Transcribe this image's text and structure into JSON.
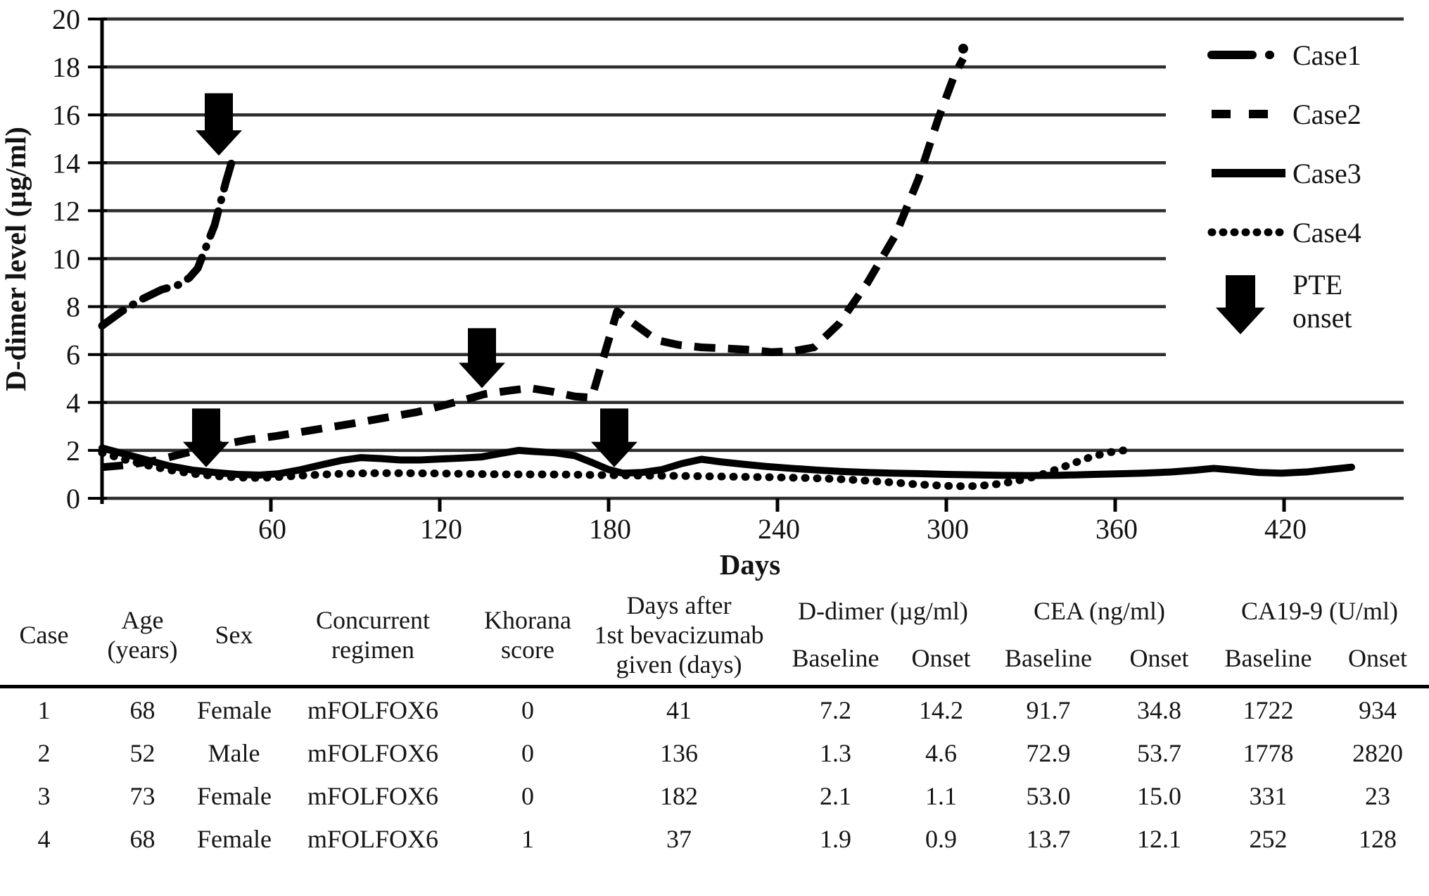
{
  "chart_data": {
    "type": "line",
    "title": "",
    "xlabel": "Days",
    "ylabel": "D-dimer level (µg/ml)",
    "xlim": [
      0,
      462
    ],
    "ylim": [
      0,
      20
    ],
    "y_ticks": [
      0,
      2,
      4,
      6,
      8,
      10,
      12,
      14,
      16,
      18,
      20
    ],
    "x_ticks": [
      60,
      120,
      180,
      240,
      300,
      360,
      420
    ],
    "grid": "horizontal",
    "legend_position": "right",
    "series": [
      {
        "name": "Case1",
        "style": "dash-dot",
        "points": [
          [
            0,
            7.2
          ],
          [
            7,
            7.8
          ],
          [
            14,
            8.3
          ],
          [
            21,
            8.7
          ],
          [
            27,
            8.9
          ],
          [
            31,
            9.2
          ],
          [
            34,
            9.6
          ],
          [
            37,
            10.5
          ],
          [
            40,
            11.4
          ],
          [
            42,
            12.3
          ],
          [
            44,
            13.2
          ],
          [
            46,
            14.0
          ]
        ]
      },
      {
        "name": "Case2",
        "style": "dashed",
        "end_marker": true,
        "points": [
          [
            0,
            1.3
          ],
          [
            10,
            1.4
          ],
          [
            20,
            1.6
          ],
          [
            30,
            1.9
          ],
          [
            41,
            2.2
          ],
          [
            52,
            2.45
          ],
          [
            62,
            2.6
          ],
          [
            75,
            2.85
          ],
          [
            88,
            3.1
          ],
          [
            100,
            3.35
          ],
          [
            112,
            3.6
          ],
          [
            122,
            3.9
          ],
          [
            130,
            4.15
          ],
          [
            136,
            4.35
          ],
          [
            145,
            4.5
          ],
          [
            152,
            4.6
          ],
          [
            160,
            4.45
          ],
          [
            168,
            4.25
          ],
          [
            174,
            4.2
          ],
          [
            183,
            7.8
          ],
          [
            190,
            7.2
          ],
          [
            197,
            6.6
          ],
          [
            205,
            6.4
          ],
          [
            213,
            6.3
          ],
          [
            222,
            6.25
          ],
          [
            230,
            6.2
          ],
          [
            238,
            6.1
          ],
          [
            246,
            6.15
          ],
          [
            253,
            6.3
          ],
          [
            262,
            7.3
          ],
          [
            272,
            9.0
          ],
          [
            282,
            11.0
          ],
          [
            290,
            13.3
          ],
          [
            297,
            15.8
          ],
          [
            303,
            17.7
          ],
          [
            306,
            18.35
          ]
        ]
      },
      {
        "name": "Case3",
        "style": "solid",
        "points": [
          [
            0,
            2.1
          ],
          [
            8,
            1.85
          ],
          [
            16,
            1.6
          ],
          [
            24,
            1.35
          ],
          [
            32,
            1.18
          ],
          [
            40,
            1.08
          ],
          [
            48,
            1.0
          ],
          [
            56,
            0.97
          ],
          [
            63,
            1.03
          ],
          [
            70,
            1.18
          ],
          [
            78,
            1.4
          ],
          [
            85,
            1.58
          ],
          [
            92,
            1.7
          ],
          [
            99,
            1.66
          ],
          [
            106,
            1.6
          ],
          [
            113,
            1.6
          ],
          [
            120,
            1.64
          ],
          [
            128,
            1.68
          ],
          [
            135,
            1.73
          ],
          [
            142,
            1.88
          ],
          [
            148,
            2.0
          ],
          [
            154,
            1.95
          ],
          [
            161,
            1.9
          ],
          [
            168,
            1.78
          ],
          [
            174,
            1.5
          ],
          [
            180,
            1.2
          ],
          [
            185,
            1.05
          ],
          [
            192,
            1.08
          ],
          [
            199,
            1.2
          ],
          [
            206,
            1.45
          ],
          [
            213,
            1.63
          ],
          [
            220,
            1.52
          ],
          [
            228,
            1.42
          ],
          [
            236,
            1.33
          ],
          [
            245,
            1.25
          ],
          [
            254,
            1.18
          ],
          [
            263,
            1.12
          ],
          [
            272,
            1.08
          ],
          [
            281,
            1.05
          ],
          [
            290,
            1.03
          ],
          [
            300,
            1.0
          ],
          [
            310,
            0.98
          ],
          [
            320,
            0.96
          ],
          [
            330,
            0.95
          ],
          [
            340,
            0.96
          ],
          [
            350,
            0.99
          ],
          [
            360,
            1.02
          ],
          [
            370,
            1.05
          ],
          [
            380,
            1.1
          ],
          [
            388,
            1.17
          ],
          [
            395,
            1.25
          ],
          [
            403,
            1.17
          ],
          [
            411,
            1.08
          ],
          [
            419,
            1.05
          ],
          [
            428,
            1.1
          ],
          [
            436,
            1.2
          ],
          [
            444,
            1.3
          ]
        ]
      },
      {
        "name": "Case4",
        "style": "dotted",
        "points": [
          [
            0,
            1.9
          ],
          [
            8,
            1.62
          ],
          [
            16,
            1.38
          ],
          [
            24,
            1.18
          ],
          [
            32,
            1.03
          ],
          [
            40,
            0.93
          ],
          [
            48,
            0.87
          ],
          [
            56,
            0.85
          ],
          [
            64,
            0.9
          ],
          [
            74,
            0.97
          ],
          [
            84,
            1.02
          ],
          [
            95,
            1.05
          ],
          [
            106,
            1.05
          ],
          [
            118,
            1.04
          ],
          [
            130,
            1.02
          ],
          [
            142,
            1.0
          ],
          [
            154,
            1.0
          ],
          [
            166,
            0.99
          ],
          [
            178,
            0.97
          ],
          [
            190,
            0.95
          ],
          [
            202,
            0.94
          ],
          [
            214,
            0.92
          ],
          [
            226,
            0.9
          ],
          [
            238,
            0.88
          ],
          [
            250,
            0.85
          ],
          [
            260,
            0.81
          ],
          [
            270,
            0.75
          ],
          [
            280,
            0.67
          ],
          [
            290,
            0.58
          ],
          [
            300,
            0.52
          ],
          [
            308,
            0.5
          ],
          [
            316,
            0.56
          ],
          [
            324,
            0.7
          ],
          [
            332,
            0.92
          ],
          [
            339,
            1.2
          ],
          [
            346,
            1.5
          ],
          [
            352,
            1.75
          ],
          [
            358,
            1.92
          ],
          [
            363,
            2.0
          ]
        ]
      }
    ],
    "annotations": {
      "arrow_label_lines": [
        "PTE",
        "onset"
      ],
      "arrows": [
        {
          "case": "Case1",
          "day": 41.5,
          "from": 16.9,
          "to": 14.3
        },
        {
          "case": "Case2",
          "day": 135,
          "from": 7.1,
          "to": 4.6
        },
        {
          "case": "Case4",
          "day": 37,
          "from": 3.75,
          "to": 1.3
        },
        {
          "case": "Case3",
          "day": 182,
          "from": 3.75,
          "to": 1.3
        }
      ]
    }
  },
  "axes": {
    "y_title": "D-dimer level (µg/ml)",
    "x_title": "Days"
  },
  "table": {
    "columns": [
      "Case",
      "Age\n(years)",
      "Sex",
      "Concurrent\nregimen",
      "Khorana\nscore",
      "Days after\n1st bevacizumab\ngiven (days)"
    ],
    "groups": [
      "D-dimer (µg/ml)",
      "CEA (ng/ml)",
      "CA19-9 (U/ml)"
    ],
    "sub_headers": [
      "Baseline",
      "Onset",
      "Baseline",
      "Onset",
      "Baseline",
      "Onset"
    ],
    "rows": [
      [
        "1",
        "68",
        "Female",
        "mFOLFOX6",
        "0",
        "41",
        "7.2",
        "14.2",
        "91.7",
        "34.8",
        "1722",
        "934"
      ],
      [
        "2",
        "52",
        "Male",
        "mFOLFOX6",
        "0",
        "136",
        "1.3",
        "4.6",
        "72.9",
        "53.7",
        "1778",
        "2820"
      ],
      [
        "3",
        "73",
        "Female",
        "mFOLFOX6",
        "0",
        "182",
        "2.1",
        "1.1",
        "53.0",
        "15.0",
        "331",
        "23"
      ],
      [
        "4",
        "68",
        "Female",
        "mFOLFOX6",
        "1",
        "37",
        "1.9",
        "0.9",
        "13.7",
        "12.1",
        "252",
        "128"
      ]
    ]
  },
  "colors": {
    "ink": "#000000",
    "grid": "#2e2e2e",
    "background": "#ffffff"
  }
}
